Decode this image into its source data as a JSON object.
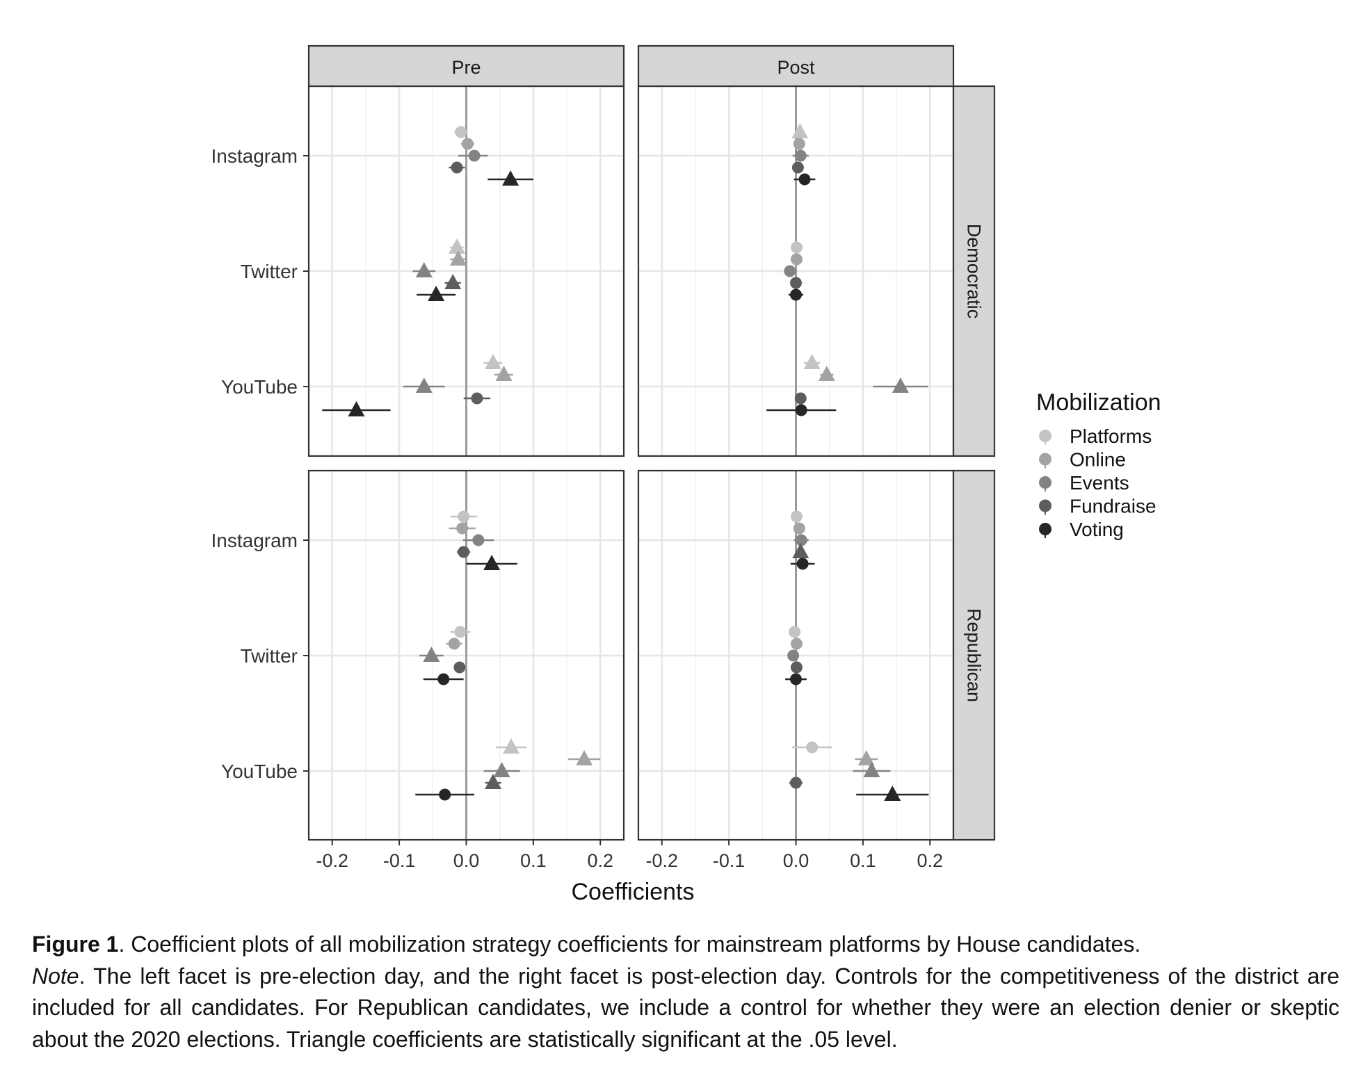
{
  "chart_data": {
    "type": "scatter",
    "subtype": "faceted coefficient plot (point estimates with confidence intervals)",
    "xlabel": "Coefficients",
    "ylabel": "",
    "xlim": [
      -0.235,
      0.235
    ],
    "x_ticks": [
      -0.2,
      -0.1,
      0.0,
      0.1,
      0.2
    ],
    "x_tick_labels": [
      "-0.2",
      "-0.1",
      "0.0",
      "0.1",
      "0.2"
    ],
    "grid": true,
    "zero_line": 0.0,
    "col_facets": [
      "Pre",
      "Post"
    ],
    "row_facets": [
      "Democratic",
      "Republican"
    ],
    "platforms": [
      "Instagram",
      "Twitter",
      "YouTube"
    ],
    "legend": {
      "title": "Mobilization",
      "placement": "right",
      "entries": [
        "Platforms",
        "Online",
        "Events",
        "Fundraise",
        "Voting"
      ],
      "colors": [
        "#c3c3c3",
        "#a3a3a3",
        "#838383",
        "#5d5d5d",
        "#262626"
      ]
    },
    "marker_note": "triangle = statistically significant at .05 level; circle = not significant",
    "panels": [
      {
        "row": "Democratic",
        "col": "Pre",
        "points": [
          {
            "platform": "Instagram",
            "mobilization": "Platforms",
            "estimate": -0.008,
            "ci": [
              -0.018,
              0.002
            ],
            "significant": false
          },
          {
            "platform": "Instagram",
            "mobilization": "Online",
            "estimate": 0.002,
            "ci": [
              -0.008,
              0.012
            ],
            "significant": false
          },
          {
            "platform": "Instagram",
            "mobilization": "Events",
            "estimate": 0.012,
            "ci": [
              -0.012,
              0.032
            ],
            "significant": false
          },
          {
            "platform": "Instagram",
            "mobilization": "Fundraise",
            "estimate": -0.014,
            "ci": [
              -0.026,
              -0.002
            ],
            "significant": false
          },
          {
            "platform": "Instagram",
            "mobilization": "Voting",
            "estimate": 0.066,
            "ci": [
              0.032,
              0.1
            ],
            "significant": true
          },
          {
            "platform": "Twitter",
            "mobilization": "Platforms",
            "estimate": -0.014,
            "ci": [
              -0.024,
              -0.004
            ],
            "significant": true
          },
          {
            "platform": "Twitter",
            "mobilization": "Online",
            "estimate": -0.012,
            "ci": [
              -0.024,
              0.0
            ],
            "significant": true
          },
          {
            "platform": "Twitter",
            "mobilization": "Events",
            "estimate": -0.063,
            "ci": [
              -0.08,
              -0.046
            ],
            "significant": true
          },
          {
            "platform": "Twitter",
            "mobilization": "Fundraise",
            "estimate": -0.02,
            "ci": [
              -0.032,
              -0.008
            ],
            "significant": true
          },
          {
            "platform": "Twitter",
            "mobilization": "Voting",
            "estimate": -0.045,
            "ci": [
              -0.074,
              -0.016
            ],
            "significant": true
          },
          {
            "platform": "YouTube",
            "mobilization": "Platforms",
            "estimate": 0.04,
            "ci": [
              0.026,
              0.054
            ],
            "significant": true
          },
          {
            "platform": "YouTube",
            "mobilization": "Online",
            "estimate": 0.056,
            "ci": [
              0.042,
              0.07
            ],
            "significant": true
          },
          {
            "platform": "YouTube",
            "mobilization": "Events",
            "estimate": -0.063,
            "ci": [
              -0.094,
              -0.032
            ],
            "significant": true
          },
          {
            "platform": "YouTube",
            "mobilization": "Fundraise",
            "estimate": 0.016,
            "ci": [
              -0.004,
              0.036
            ],
            "significant": false
          },
          {
            "platform": "YouTube",
            "mobilization": "Voting",
            "estimate": -0.164,
            "ci": [
              -0.215,
              -0.113
            ],
            "significant": true
          }
        ]
      },
      {
        "row": "Democratic",
        "col": "Post",
        "points": [
          {
            "platform": "Instagram",
            "mobilization": "Platforms",
            "estimate": 0.006,
            "ci": [
              0.0,
              0.012
            ],
            "significant": true
          },
          {
            "platform": "Instagram",
            "mobilization": "Online",
            "estimate": 0.005,
            "ci": [
              -0.002,
              0.012
            ],
            "significant": false
          },
          {
            "platform": "Instagram",
            "mobilization": "Events",
            "estimate": 0.007,
            "ci": [
              -0.005,
              0.019
            ],
            "significant": false
          },
          {
            "platform": "Instagram",
            "mobilization": "Fundraise",
            "estimate": 0.003,
            "ci": [
              -0.005,
              0.011
            ],
            "significant": false
          },
          {
            "platform": "Instagram",
            "mobilization": "Voting",
            "estimate": 0.013,
            "ci": [
              -0.003,
              0.029
            ],
            "significant": false
          },
          {
            "platform": "Twitter",
            "mobilization": "Platforms",
            "estimate": 0.001,
            "ci": [
              -0.004,
              0.006
            ],
            "significant": false
          },
          {
            "platform": "Twitter",
            "mobilization": "Online",
            "estimate": 0.001,
            "ci": [
              -0.004,
              0.006
            ],
            "significant": false
          },
          {
            "platform": "Twitter",
            "mobilization": "Events",
            "estimate": -0.009,
            "ci": [
              -0.017,
              -0.001
            ],
            "significant": false
          },
          {
            "platform": "Twitter",
            "mobilization": "Fundraise",
            "estimate": 0.0,
            "ci": [
              -0.007,
              0.007
            ],
            "significant": false
          },
          {
            "platform": "Twitter",
            "mobilization": "Voting",
            "estimate": 0.0,
            "ci": [
              -0.011,
              0.011
            ],
            "significant": false
          },
          {
            "platform": "YouTube",
            "mobilization": "Platforms",
            "estimate": 0.024,
            "ci": [
              0.012,
              0.036
            ],
            "significant": true
          },
          {
            "platform": "YouTube",
            "mobilization": "Online",
            "estimate": 0.046,
            "ci": [
              0.036,
              0.056
            ],
            "significant": true
          },
          {
            "platform": "YouTube",
            "mobilization": "Events",
            "estimate": 0.156,
            "ci": [
              0.115,
              0.197
            ],
            "significant": true
          },
          {
            "platform": "YouTube",
            "mobilization": "Fundraise",
            "estimate": 0.007,
            "ci": [
              -0.001,
              0.015
            ],
            "significant": false
          },
          {
            "platform": "YouTube",
            "mobilization": "Voting",
            "estimate": 0.008,
            "ci": [
              -0.044,
              0.06
            ],
            "significant": false
          }
        ]
      },
      {
        "row": "Republican",
        "col": "Pre",
        "points": [
          {
            "platform": "Instagram",
            "mobilization": "Platforms",
            "estimate": -0.004,
            "ci": [
              -0.024,
              0.016
            ],
            "significant": false
          },
          {
            "platform": "Instagram",
            "mobilization": "Online",
            "estimate": -0.006,
            "ci": [
              -0.026,
              0.014
            ],
            "significant": false
          },
          {
            "platform": "Instagram",
            "mobilization": "Events",
            "estimate": 0.018,
            "ci": [
              -0.005,
              0.041
            ],
            "significant": false
          },
          {
            "platform": "Instagram",
            "mobilization": "Fundraise",
            "estimate": -0.004,
            "ci": [
              -0.014,
              0.006
            ],
            "significant": false
          },
          {
            "platform": "Instagram",
            "mobilization": "Voting",
            "estimate": 0.038,
            "ci": [
              0.0,
              0.076
            ],
            "significant": true
          },
          {
            "platform": "Twitter",
            "mobilization": "Platforms",
            "estimate": -0.009,
            "ci": [
              -0.024,
              0.006
            ],
            "significant": false
          },
          {
            "platform": "Twitter",
            "mobilization": "Online",
            "estimate": -0.018,
            "ci": [
              -0.03,
              -0.006
            ],
            "significant": false
          },
          {
            "platform": "Twitter",
            "mobilization": "Events",
            "estimate": -0.052,
            "ci": [
              -0.07,
              -0.034
            ],
            "significant": true
          },
          {
            "platform": "Twitter",
            "mobilization": "Fundraise",
            "estimate": -0.01,
            "ci": [
              -0.016,
              -0.004
            ],
            "significant": false
          },
          {
            "platform": "Twitter",
            "mobilization": "Voting",
            "estimate": -0.034,
            "ci": [
              -0.064,
              -0.004
            ],
            "significant": false
          },
          {
            "platform": "YouTube",
            "mobilization": "Platforms",
            "estimate": 0.067,
            "ci": [
              0.044,
              0.09
            ],
            "significant": true
          },
          {
            "platform": "YouTube",
            "mobilization": "Online",
            "estimate": 0.176,
            "ci": [
              0.152,
              0.2
            ],
            "significant": true
          },
          {
            "platform": "YouTube",
            "mobilization": "Events",
            "estimate": 0.053,
            "ci": [
              0.026,
              0.08
            ],
            "significant": true
          },
          {
            "platform": "YouTube",
            "mobilization": "Fundraise",
            "estimate": 0.04,
            "ci": [
              0.028,
              0.052
            ],
            "significant": true
          },
          {
            "platform": "YouTube",
            "mobilization": "Voting",
            "estimate": -0.032,
            "ci": [
              -0.076,
              0.012
            ],
            "significant": false
          }
        ]
      },
      {
        "row": "Republican",
        "col": "Post",
        "points": [
          {
            "platform": "Instagram",
            "mobilization": "Platforms",
            "estimate": 0.001,
            "ci": [
              -0.005,
              0.007
            ],
            "significant": false
          },
          {
            "platform": "Instagram",
            "mobilization": "Online",
            "estimate": 0.005,
            "ci": [
              -0.002,
              0.012
            ],
            "significant": false
          },
          {
            "platform": "Instagram",
            "mobilization": "Events",
            "estimate": 0.008,
            "ci": [
              -0.003,
              0.019
            ],
            "significant": false
          },
          {
            "platform": "Instagram",
            "mobilization": "Fundraise",
            "estimate": 0.007,
            "ci": [
              0.001,
              0.013
            ],
            "significant": true
          },
          {
            "platform": "Instagram",
            "mobilization": "Voting",
            "estimate": 0.01,
            "ci": [
              -0.008,
              0.028
            ],
            "significant": false
          },
          {
            "platform": "Twitter",
            "mobilization": "Platforms",
            "estimate": -0.002,
            "ci": [
              -0.007,
              0.003
            ],
            "significant": false
          },
          {
            "platform": "Twitter",
            "mobilization": "Online",
            "estimate": 0.001,
            "ci": [
              -0.004,
              0.006
            ],
            "significant": false
          },
          {
            "platform": "Twitter",
            "mobilization": "Events",
            "estimate": -0.004,
            "ci": [
              -0.01,
              0.002
            ],
            "significant": false
          },
          {
            "platform": "Twitter",
            "mobilization": "Fundraise",
            "estimate": 0.001,
            "ci": [
              -0.004,
              0.006
            ],
            "significant": false
          },
          {
            "platform": "Twitter",
            "mobilization": "Voting",
            "estimate": 0.0,
            "ci": [
              -0.016,
              0.016
            ],
            "significant": false
          },
          {
            "platform": "YouTube",
            "mobilization": "Platforms",
            "estimate": 0.024,
            "ci": [
              -0.006,
              0.054
            ],
            "significant": false
          },
          {
            "platform": "YouTube",
            "mobilization": "Online",
            "estimate": 0.105,
            "ci": [
              0.088,
              0.122
            ],
            "significant": true
          },
          {
            "platform": "YouTube",
            "mobilization": "Events",
            "estimate": 0.113,
            "ci": [
              0.085,
              0.141
            ],
            "significant": true
          },
          {
            "platform": "YouTube",
            "mobilization": "Fundraise",
            "estimate": 0.0,
            "ci": [
              -0.01,
              0.01
            ],
            "significant": false
          },
          {
            "platform": "YouTube",
            "mobilization": "Voting",
            "estimate": 0.144,
            "ci": [
              0.09,
              0.198
            ],
            "significant": true
          }
        ]
      }
    ]
  },
  "caption": {
    "fig_label": "Figure 1",
    "fig_text": ". Coefficient plots of all mobilization strategy coefficients for mainstream platforms by House candidates.",
    "note_label": "Note",
    "note_text": ". The left facet is pre-election day, and the right facet is post-election day. Controls for the competitiveness of the district are included for all candidates. For Republican candidates, we include a control for whether they were an election denier or skeptic about the 2020 elections. Triangle coefficients are statistically significant at the .05 level."
  }
}
